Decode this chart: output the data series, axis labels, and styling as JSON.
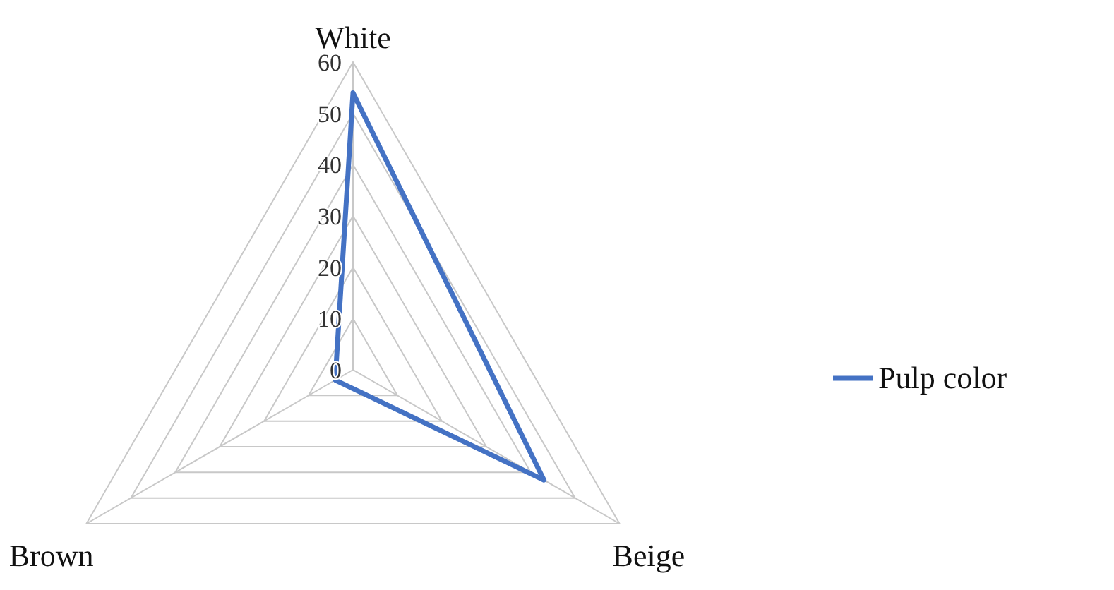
{
  "chart_data": {
    "type": "radar",
    "categories": [
      "White",
      "Beige",
      "Brown"
    ],
    "series": [
      {
        "name": "Pulp color",
        "color": "#4472c4",
        "values": [
          54,
          43,
          4
        ]
      }
    ],
    "ylim": [
      0,
      60
    ],
    "yticks": [
      0,
      10,
      20,
      30,
      40,
      50,
      60
    ],
    "legend": "right"
  }
}
